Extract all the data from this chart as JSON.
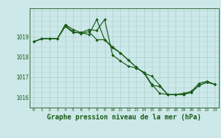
{
  "background_color": "#cce8e8",
  "grid_color": "#aacccc",
  "line_color": "#1a5c1a",
  "marker_color": "#1a5c1a",
  "xlabel": "Graphe pression niveau de la mer (hPa)",
  "xlabel_fontsize": 7,
  "ylabel_ticks": [
    1016,
    1017,
    1018,
    1019
  ],
  "xtick_labels": [
    "0",
    "1",
    "2",
    "3",
    "4",
    "5",
    "6",
    "7",
    "8",
    "9",
    "10",
    "11",
    "12",
    "13",
    "14",
    "15",
    "16",
    "17",
    "18",
    "19",
    "20",
    "21",
    "22",
    "23"
  ],
  "ylim": [
    1015.5,
    1020.4
  ],
  "xlim": [
    -0.5,
    23.5
  ],
  "series": [
    [
      1018.75,
      1018.9,
      1018.9,
      1018.9,
      1019.5,
      1019.2,
      1019.2,
      1019.1,
      1019.85,
      1018.85,
      1018.45,
      1018.2,
      1017.85,
      1017.5,
      1017.2,
      1017.05,
      1016.6,
      1016.15,
      1016.15,
      1016.15,
      1016.25,
      1016.6,
      1016.75,
      1016.65
    ],
    [
      1018.75,
      1018.9,
      1018.9,
      1018.9,
      1019.6,
      1019.35,
      1019.2,
      1019.35,
      1019.3,
      1019.85,
      1018.1,
      1017.8,
      1017.55,
      1017.45,
      1017.25,
      1016.65,
      1016.2,
      1016.15,
      1016.15,
      1016.2,
      1016.3,
      1016.7,
      1016.8,
      1016.65
    ],
    [
      1018.75,
      1018.9,
      1018.9,
      1018.9,
      1019.55,
      1019.25,
      1019.15,
      1019.25,
      1018.85,
      1018.85,
      1018.5,
      1018.2,
      1017.85,
      1017.5,
      1017.2,
      1016.6,
      1016.55,
      1016.15,
      1016.15,
      1016.15,
      1016.25,
      1016.6,
      1016.75,
      1016.65
    ]
  ]
}
